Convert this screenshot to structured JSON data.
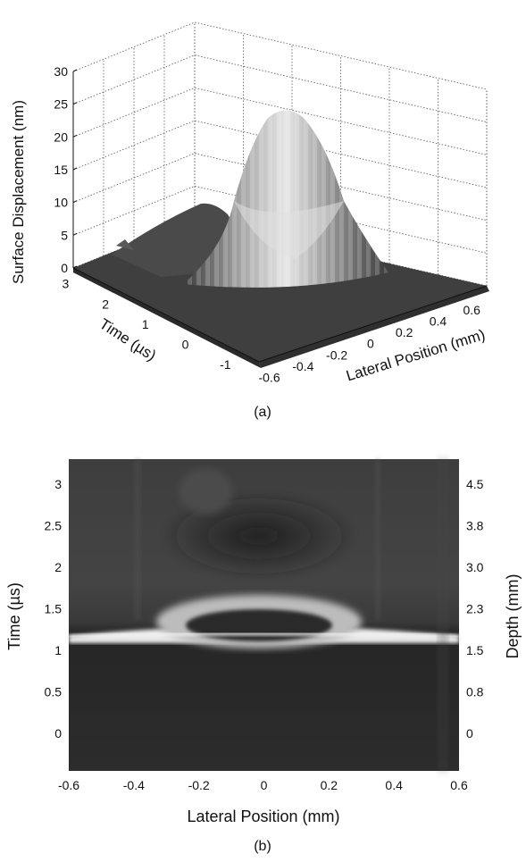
{
  "chart_data": [
    {
      "type": "surface3d",
      "panel_label": "(a)",
      "zlabel": "Surface Displacement (nm)",
      "ylabel": "Time (µs)",
      "xlabel": "Lateral Position (mm)",
      "zticks": [
        "0",
        "5",
        "10",
        "15",
        "20",
        "25",
        "30"
      ],
      "yticks": [
        "3",
        "2",
        "1",
        "0",
        "-1"
      ],
      "xticks": [
        "-0.6",
        "-0.4",
        "-0.2",
        "0",
        "0.2",
        "0.4",
        "0.6"
      ],
      "zlim": [
        0,
        30
      ],
      "ylim": [
        -1,
        3
      ],
      "xlim": [
        -0.6,
        0.6
      ],
      "grid": true,
      "peak": {
        "x": 0.0,
        "time": 1.5,
        "z": 24
      }
    },
    {
      "type": "heatmap",
      "panel_label": "(b)",
      "xlabel": "Lateral Position (mm)",
      "ylabel": "Time (µs)",
      "y2label": "Depth (mm)",
      "xticks": [
        "-0.6",
        "-0.4",
        "-0.2",
        "0",
        "0.2",
        "0.4",
        "0.6"
      ],
      "yticks": [
        "0",
        "0.5",
        "1",
        "1.5",
        "2",
        "2.5",
        "3"
      ],
      "y2ticks": [
        "0",
        "0.8",
        "1.5",
        "2.3",
        "3.0",
        "3.8",
        "4.5"
      ],
      "xlim": [
        -0.6,
        0.6
      ],
      "ylim": [
        -0.45,
        3.3
      ],
      "colormap": "gray",
      "features": {
        "bright_arc_time": 1.2,
        "dark_core_time": 1.3,
        "dark_core_halfwidth_mm": 0.18,
        "upper_dark_region_time": 2.5
      }
    }
  ]
}
